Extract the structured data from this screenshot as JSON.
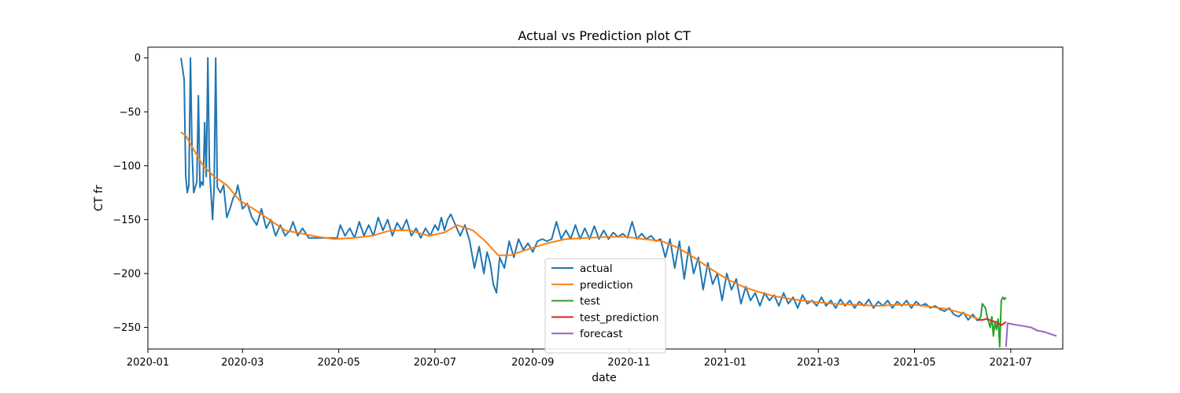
{
  "chart_data": {
    "type": "line",
    "title": "Actual vs Prediction plot CT",
    "xlabel": "date",
    "ylabel": "CT fr",
    "x_axis": "date",
    "xlim": [
      "2020-01-01",
      "2021-08-03"
    ],
    "ylim": [
      -270,
      10
    ],
    "x_ticks": [
      "2020-01",
      "2020-03",
      "2020-05",
      "2020-07",
      "2020-09",
      "2020-11",
      "2021-01",
      "2021-03",
      "2021-05",
      "2021-07"
    ],
    "y_ticks": [
      0,
      -50,
      -100,
      -150,
      -200,
      -250
    ],
    "grid": false,
    "legend_position": "lower center",
    "series": [
      {
        "name": "actual",
        "color": "#1f77b4",
        "points": [
          [
            "2020-01-22",
            0
          ],
          [
            "2020-01-24",
            -20
          ],
          [
            "2020-01-25",
            -110
          ],
          [
            "2020-01-26",
            -125
          ],
          [
            "2020-01-27",
            -118
          ],
          [
            "2020-01-28",
            0
          ],
          [
            "2020-01-29",
            -85
          ],
          [
            "2020-01-30",
            -125
          ],
          [
            "2020-02-01",
            -115
          ],
          [
            "2020-02-02",
            -35
          ],
          [
            "2020-02-03",
            -120
          ],
          [
            "2020-02-04",
            -115
          ],
          [
            "2020-02-05",
            -118
          ],
          [
            "2020-02-06",
            -60
          ],
          [
            "2020-02-07",
            -110
          ],
          [
            "2020-02-08",
            0
          ],
          [
            "2020-02-09",
            -100
          ],
          [
            "2020-02-11",
            -150
          ],
          [
            "2020-02-12",
            -120
          ],
          [
            "2020-02-13",
            0
          ],
          [
            "2020-02-14",
            -120
          ],
          [
            "2020-02-16",
            -125
          ],
          [
            "2020-02-18",
            -118
          ],
          [
            "2020-02-20",
            -148
          ],
          [
            "2020-02-22",
            -140
          ],
          [
            "2020-02-24",
            -130
          ],
          [
            "2020-02-26",
            -125
          ],
          [
            "2020-02-27",
            -118
          ],
          [
            "2020-03-01",
            -140
          ],
          [
            "2020-03-04",
            -135
          ],
          [
            "2020-03-07",
            -148
          ],
          [
            "2020-03-10",
            -155
          ],
          [
            "2020-03-13",
            -140
          ],
          [
            "2020-03-16",
            -158
          ],
          [
            "2020-03-19",
            -150
          ],
          [
            "2020-03-22",
            -165
          ],
          [
            "2020-03-25",
            -155
          ],
          [
            "2020-03-28",
            -165
          ],
          [
            "2020-03-31",
            -160
          ],
          [
            "2020-04-02",
            -152
          ],
          [
            "2020-04-05",
            -165
          ],
          [
            "2020-04-08",
            -158
          ],
          [
            "2020-04-12",
            -167
          ],
          [
            "2020-04-18",
            -167
          ],
          [
            "2020-04-24",
            -167
          ],
          [
            "2020-04-30",
            -167
          ],
          [
            "2020-05-02",
            -155
          ],
          [
            "2020-05-05",
            -165
          ],
          [
            "2020-05-08",
            -158
          ],
          [
            "2020-05-11",
            -167
          ],
          [
            "2020-05-14",
            -152
          ],
          [
            "2020-05-17",
            -165
          ],
          [
            "2020-05-20",
            -155
          ],
          [
            "2020-05-23",
            -165
          ],
          [
            "2020-05-26",
            -148
          ],
          [
            "2020-05-29",
            -160
          ],
          [
            "2020-06-01",
            -150
          ],
          [
            "2020-06-04",
            -165
          ],
          [
            "2020-06-07",
            -153
          ],
          [
            "2020-06-10",
            -160
          ],
          [
            "2020-06-13",
            -150
          ],
          [
            "2020-06-16",
            -165
          ],
          [
            "2020-06-19",
            -158
          ],
          [
            "2020-06-22",
            -167
          ],
          [
            "2020-06-25",
            -158
          ],
          [
            "2020-06-28",
            -165
          ],
          [
            "2020-07-01",
            -155
          ],
          [
            "2020-07-03",
            -160
          ],
          [
            "2020-07-05",
            -148
          ],
          [
            "2020-07-07",
            -160
          ],
          [
            "2020-07-09",
            -150
          ],
          [
            "2020-07-11",
            -145
          ],
          [
            "2020-07-14",
            -155
          ],
          [
            "2020-07-17",
            -165
          ],
          [
            "2020-07-20",
            -155
          ],
          [
            "2020-07-23",
            -170
          ],
          [
            "2020-07-26",
            -195
          ],
          [
            "2020-07-29",
            -175
          ],
          [
            "2020-08-01",
            -200
          ],
          [
            "2020-08-03",
            -180
          ],
          [
            "2020-08-05",
            -190
          ],
          [
            "2020-08-07",
            -210
          ],
          [
            "2020-08-09",
            -218
          ],
          [
            "2020-08-11",
            -185
          ],
          [
            "2020-08-14",
            -195
          ],
          [
            "2020-08-17",
            -170
          ],
          [
            "2020-08-20",
            -185
          ],
          [
            "2020-08-23",
            -168
          ],
          [
            "2020-08-26",
            -178
          ],
          [
            "2020-08-29",
            -172
          ],
          [
            "2020-09-01",
            -180
          ],
          [
            "2020-09-04",
            -170
          ],
          [
            "2020-09-07",
            -168
          ],
          [
            "2020-09-10",
            -170
          ],
          [
            "2020-09-13",
            -168
          ],
          [
            "2020-09-16",
            -152
          ],
          [
            "2020-09-19",
            -168
          ],
          [
            "2020-09-22",
            -160
          ],
          [
            "2020-09-25",
            -168
          ],
          [
            "2020-09-28",
            -155
          ],
          [
            "2020-10-01",
            -168
          ],
          [
            "2020-10-04",
            -158
          ],
          [
            "2020-10-07",
            -168
          ],
          [
            "2020-10-10",
            -156
          ],
          [
            "2020-10-13",
            -168
          ],
          [
            "2020-10-16",
            -160
          ],
          [
            "2020-10-19",
            -168
          ],
          [
            "2020-10-22",
            -162
          ],
          [
            "2020-10-25",
            -166
          ],
          [
            "2020-10-28",
            -163
          ],
          [
            "2020-10-31",
            -167
          ],
          [
            "2020-11-03",
            -152
          ],
          [
            "2020-11-06",
            -168
          ],
          [
            "2020-11-09",
            -163
          ],
          [
            "2020-11-12",
            -168
          ],
          [
            "2020-11-15",
            -165
          ],
          [
            "2020-11-18",
            -170
          ],
          [
            "2020-11-21",
            -168
          ],
          [
            "2020-11-24",
            -185
          ],
          [
            "2020-11-27",
            -168
          ],
          [
            "2020-11-30",
            -195
          ],
          [
            "2020-12-03",
            -170
          ],
          [
            "2020-12-06",
            -205
          ],
          [
            "2020-12-09",
            -175
          ],
          [
            "2020-12-12",
            -200
          ],
          [
            "2020-12-15",
            -185
          ],
          [
            "2020-12-18",
            -215
          ],
          [
            "2020-12-21",
            -190
          ],
          [
            "2020-12-24",
            -210
          ],
          [
            "2020-12-27",
            -200
          ],
          [
            "2020-12-30",
            -225
          ],
          [
            "2021-01-02",
            -200
          ],
          [
            "2021-01-05",
            -215
          ],
          [
            "2021-01-08",
            -205
          ],
          [
            "2021-01-11",
            -228
          ],
          [
            "2021-01-14",
            -212
          ],
          [
            "2021-01-17",
            -225
          ],
          [
            "2021-01-20",
            -218
          ],
          [
            "2021-01-23",
            -230
          ],
          [
            "2021-01-26",
            -218
          ],
          [
            "2021-01-29",
            -225
          ],
          [
            "2021-02-01",
            -220
          ],
          [
            "2021-02-04",
            -230
          ],
          [
            "2021-02-07",
            -218
          ],
          [
            "2021-02-10",
            -228
          ],
          [
            "2021-02-13",
            -222
          ],
          [
            "2021-02-16",
            -232
          ],
          [
            "2021-02-19",
            -220
          ],
          [
            "2021-02-22",
            -228
          ],
          [
            "2021-02-25",
            -225
          ],
          [
            "2021-02-28",
            -230
          ],
          [
            "2021-03-03",
            -222
          ],
          [
            "2021-03-06",
            -230
          ],
          [
            "2021-03-09",
            -225
          ],
          [
            "2021-03-12",
            -232
          ],
          [
            "2021-03-15",
            -224
          ],
          [
            "2021-03-18",
            -230
          ],
          [
            "2021-03-21",
            -225
          ],
          [
            "2021-03-24",
            -232
          ],
          [
            "2021-03-27",
            -226
          ],
          [
            "2021-03-30",
            -230
          ],
          [
            "2021-04-02",
            -224
          ],
          [
            "2021-04-05",
            -232
          ],
          [
            "2021-04-08",
            -226
          ],
          [
            "2021-04-11",
            -230
          ],
          [
            "2021-04-14",
            -225
          ],
          [
            "2021-04-17",
            -232
          ],
          [
            "2021-04-20",
            -226
          ],
          [
            "2021-04-23",
            -230
          ],
          [
            "2021-04-26",
            -225
          ],
          [
            "2021-04-29",
            -232
          ],
          [
            "2021-05-02",
            -226
          ],
          [
            "2021-05-05",
            -230
          ],
          [
            "2021-05-08",
            -228
          ],
          [
            "2021-05-11",
            -232
          ],
          [
            "2021-05-14",
            -230
          ],
          [
            "2021-05-17",
            -233
          ],
          [
            "2021-05-20",
            -235
          ],
          [
            "2021-05-23",
            -232
          ],
          [
            "2021-05-26",
            -238
          ],
          [
            "2021-05-29",
            -240
          ],
          [
            "2021-06-01",
            -236
          ],
          [
            "2021-06-04",
            -243
          ],
          [
            "2021-06-07",
            -238
          ],
          [
            "2021-06-10",
            -244
          ]
        ]
      },
      {
        "name": "prediction",
        "color": "#ff7f0e",
        "points": [
          [
            "2020-01-22",
            -69
          ],
          [
            "2020-01-25",
            -72
          ],
          [
            "2020-01-30",
            -85
          ],
          [
            "2020-02-05",
            -100
          ],
          [
            "2020-02-12",
            -110
          ],
          [
            "2020-02-20",
            -118
          ],
          [
            "2020-02-28",
            -132
          ],
          [
            "2020-03-08",
            -140
          ],
          [
            "2020-03-18",
            -150
          ],
          [
            "2020-03-28",
            -160
          ],
          [
            "2020-04-08",
            -163
          ],
          [
            "2020-04-18",
            -166
          ],
          [
            "2020-04-28",
            -168
          ],
          [
            "2020-05-10",
            -167
          ],
          [
            "2020-05-22",
            -165
          ],
          [
            "2020-06-03",
            -160
          ],
          [
            "2020-06-15",
            -160
          ],
          [
            "2020-06-27",
            -165
          ],
          [
            "2020-07-07",
            -162
          ],
          [
            "2020-07-15",
            -155
          ],
          [
            "2020-07-25",
            -160
          ],
          [
            "2020-08-02",
            -170
          ],
          [
            "2020-08-10",
            -183
          ],
          [
            "2020-08-18",
            -183
          ],
          [
            "2020-08-28",
            -178
          ],
          [
            "2020-09-10",
            -172
          ],
          [
            "2020-09-22",
            -168
          ],
          [
            "2020-10-05",
            -167
          ],
          [
            "2020-10-18",
            -166
          ],
          [
            "2020-10-30",
            -166
          ],
          [
            "2020-11-10",
            -168
          ],
          [
            "2020-11-22",
            -170
          ],
          [
            "2020-12-02",
            -176
          ],
          [
            "2020-12-12",
            -185
          ],
          [
            "2020-12-22",
            -195
          ],
          [
            "2021-01-02",
            -205
          ],
          [
            "2021-01-12",
            -212
          ],
          [
            "2021-01-22",
            -217
          ],
          [
            "2021-02-01",
            -221
          ],
          [
            "2021-02-13",
            -224
          ],
          [
            "2021-02-25",
            -226
          ],
          [
            "2021-03-10",
            -228
          ],
          [
            "2021-03-25",
            -229
          ],
          [
            "2021-04-08",
            -230
          ],
          [
            "2021-04-20",
            -229
          ],
          [
            "2021-05-01",
            -229
          ],
          [
            "2021-05-12",
            -231
          ],
          [
            "2021-05-22",
            -233
          ],
          [
            "2021-06-01",
            -237
          ],
          [
            "2021-06-10",
            -242
          ]
        ]
      },
      {
        "name": "test",
        "color": "#2ca02c",
        "points": [
          [
            "2021-06-10",
            -244
          ],
          [
            "2021-06-12",
            -240
          ],
          [
            "2021-06-13",
            -228
          ],
          [
            "2021-06-15",
            -232
          ],
          [
            "2021-06-16",
            -240
          ],
          [
            "2021-06-17",
            -245
          ],
          [
            "2021-06-18",
            -250
          ],
          [
            "2021-06-19",
            -240
          ],
          [
            "2021-06-20",
            -258
          ],
          [
            "2021-06-21",
            -245
          ],
          [
            "2021-06-22",
            -252
          ],
          [
            "2021-06-23",
            -242
          ],
          [
            "2021-06-24",
            -268
          ],
          [
            "2021-06-25",
            -225
          ],
          [
            "2021-06-26",
            -222
          ],
          [
            "2021-06-27",
            -224
          ],
          [
            "2021-06-28",
            -222
          ]
        ]
      },
      {
        "name": "test_prediction",
        "color": "#d62728",
        "points": [
          [
            "2021-06-10",
            -243
          ],
          [
            "2021-06-13",
            -243
          ],
          [
            "2021-06-16",
            -242
          ],
          [
            "2021-06-19",
            -244
          ],
          [
            "2021-06-22",
            -245
          ],
          [
            "2021-06-25",
            -248
          ],
          [
            "2021-06-28",
            -245
          ]
        ]
      },
      {
        "name": "forecast",
        "color": "#9467bd",
        "points": [
          [
            "2021-06-28",
            -268
          ],
          [
            "2021-06-29",
            -246
          ],
          [
            "2021-07-02",
            -247
          ],
          [
            "2021-07-06",
            -248
          ],
          [
            "2021-07-10",
            -249
          ],
          [
            "2021-07-14",
            -250
          ],
          [
            "2021-07-18",
            -253
          ],
          [
            "2021-07-22",
            -254
          ],
          [
            "2021-07-26",
            -256
          ],
          [
            "2021-07-30",
            -258
          ]
        ]
      }
    ]
  }
}
